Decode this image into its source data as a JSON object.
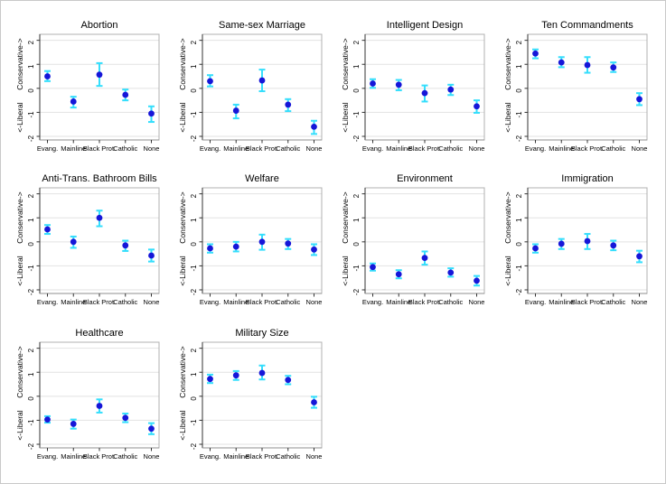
{
  "figure": {
    "description": "Grid of ten coefficient plots of policy attitudes by religious tradition",
    "x_categories": [
      "Evang.",
      "Mainline",
      "Black Prot.",
      "Catholic",
      "None"
    ],
    "y_ticks": [
      2,
      1,
      0,
      -1,
      -2
    ],
    "y_limits": [
      -2.15,
      2.25
    ],
    "y_axis_label_top": "Conservative->",
    "y_axis_label_bottom": "<-Liberal",
    "grid": true,
    "legend": "none",
    "colors": {
      "estimate_point": "#1616d8",
      "confidence_bar": "#35defc",
      "gridline": "#e2e2e2",
      "frame": "#b0b0b0",
      "axis_left": "#333333",
      "axis_bottom": "#8f8f8f",
      "tick": "#333333",
      "text": "#000000",
      "background": "#ffffff",
      "outer_border": "#c9c9c9"
    }
  },
  "chart_data": [
    {
      "type": "scatter",
      "title": "Abortion",
      "categories": [
        "Evang.",
        "Mainline",
        "Black Prot.",
        "Catholic",
        "None"
      ],
      "ylim": [
        -2.15,
        2.25
      ],
      "series": [
        {
          "name": "estimate",
          "values": [
            0.5,
            -0.55,
            0.57,
            -0.27,
            -1.05
          ]
        },
        {
          "name": "ci_lower",
          "values": [
            0.3,
            -0.8,
            0.1,
            -0.5,
            -1.4
          ]
        },
        {
          "name": "ci_upper",
          "values": [
            0.72,
            -0.35,
            1.05,
            -0.05,
            -0.75
          ]
        }
      ]
    },
    {
      "type": "scatter",
      "title": "Same-sex Marriage",
      "categories": [
        "Evang.",
        "Mainline",
        "Black Prot.",
        "Catholic",
        "None"
      ],
      "ylim": [
        -2.15,
        2.25
      ],
      "series": [
        {
          "name": "estimate",
          "values": [
            0.3,
            -0.93,
            0.33,
            -0.68,
            -1.6
          ]
        },
        {
          "name": "ci_lower",
          "values": [
            0.08,
            -1.25,
            -0.12,
            -0.95,
            -1.9
          ]
        },
        {
          "name": "ci_upper",
          "values": [
            0.55,
            -0.68,
            0.78,
            -0.45,
            -1.35
          ]
        }
      ]
    },
    {
      "type": "scatter",
      "title": "Intelligent Design",
      "categories": [
        "Evang.",
        "Mainline",
        "Black Prot.",
        "Catholic",
        "None"
      ],
      "ylim": [
        -2.15,
        2.25
      ],
      "series": [
        {
          "name": "estimate",
          "values": [
            0.2,
            0.15,
            -0.2,
            -0.05,
            -0.75
          ]
        },
        {
          "name": "ci_lower",
          "values": [
            0.02,
            -0.08,
            -0.55,
            -0.28,
            -1.02
          ]
        },
        {
          "name": "ci_upper",
          "values": [
            0.38,
            0.35,
            0.12,
            0.15,
            -0.5
          ]
        }
      ]
    },
    {
      "type": "scatter",
      "title": "Ten Commandments",
      "categories": [
        "Evang.",
        "Mainline",
        "Black Prot.",
        "Catholic",
        "None"
      ],
      "ylim": [
        -2.15,
        2.25
      ],
      "series": [
        {
          "name": "estimate",
          "values": [
            1.45,
            1.08,
            0.97,
            0.87,
            -0.45
          ]
        },
        {
          "name": "ci_lower",
          "values": [
            1.25,
            0.88,
            0.65,
            0.68,
            -0.7
          ]
        },
        {
          "name": "ci_upper",
          "values": [
            1.62,
            1.3,
            1.3,
            1.08,
            -0.2
          ]
        }
      ]
    },
    {
      "type": "scatter",
      "title": "Anti-Trans. Bathroom Bills",
      "categories": [
        "Evang.",
        "Mainline",
        "Black Prot.",
        "Catholic",
        "None"
      ],
      "ylim": [
        -2.15,
        2.25
      ],
      "series": [
        {
          "name": "estimate",
          "values": [
            0.52,
            0.0,
            1.0,
            -0.15,
            -0.57
          ]
        },
        {
          "name": "ci_lower",
          "values": [
            0.33,
            -0.25,
            0.65,
            -0.38,
            -0.82
          ]
        },
        {
          "name": "ci_upper",
          "values": [
            0.7,
            0.22,
            1.3,
            0.05,
            -0.32
          ]
        }
      ]
    },
    {
      "type": "scatter",
      "title": "Welfare",
      "categories": [
        "Evang.",
        "Mainline",
        "Black Prot.",
        "Catholic",
        "None"
      ],
      "ylim": [
        -2.15,
        2.25
      ],
      "series": [
        {
          "name": "estimate",
          "values": [
            -0.27,
            -0.2,
            0.0,
            -0.07,
            -0.32
          ]
        },
        {
          "name": "ci_lower",
          "values": [
            -0.45,
            -0.4,
            -0.33,
            -0.3,
            -0.55
          ]
        },
        {
          "name": "ci_upper",
          "values": [
            -0.1,
            0.0,
            0.3,
            0.12,
            -0.1
          ]
        }
      ]
    },
    {
      "type": "scatter",
      "title": "Environment",
      "categories": [
        "Evang.",
        "Mainline",
        "Black Prot.",
        "Catholic",
        "None"
      ],
      "ylim": [
        -2.15,
        2.25
      ],
      "series": [
        {
          "name": "estimate",
          "values": [
            -1.05,
            -1.35,
            -0.67,
            -1.28,
            -1.62
          ]
        },
        {
          "name": "ci_lower",
          "values": [
            -1.2,
            -1.52,
            -0.95,
            -1.45,
            -1.82
          ]
        },
        {
          "name": "ci_upper",
          "values": [
            -0.9,
            -1.18,
            -0.4,
            -1.1,
            -1.42
          ]
        }
      ]
    },
    {
      "type": "scatter",
      "title": "Immigration",
      "categories": [
        "Evang.",
        "Mainline",
        "Black Prot.",
        "Catholic",
        "None"
      ],
      "ylim": [
        -2.15,
        2.25
      ],
      "series": [
        {
          "name": "estimate",
          "values": [
            -0.27,
            -0.08,
            0.03,
            -0.15,
            -0.6
          ]
        },
        {
          "name": "ci_lower",
          "values": [
            -0.45,
            -0.3,
            -0.3,
            -0.35,
            -0.85
          ]
        },
        {
          "name": "ci_upper",
          "values": [
            -0.1,
            0.12,
            0.33,
            0.05,
            -0.37
          ]
        }
      ]
    },
    {
      "type": "scatter",
      "title": "Healthcare",
      "categories": [
        "Evang.",
        "Mainline",
        "Black Prot.",
        "Catholic",
        "None"
      ],
      "ylim": [
        -2.15,
        2.25
      ],
      "series": [
        {
          "name": "estimate",
          "values": [
            -0.97,
            -1.15,
            -0.4,
            -0.9,
            -1.35
          ]
        },
        {
          "name": "ci_lower",
          "values": [
            -1.1,
            -1.35,
            -0.68,
            -1.08,
            -1.58
          ]
        },
        {
          "name": "ci_upper",
          "values": [
            -0.83,
            -0.97,
            -0.13,
            -0.72,
            -1.12
          ]
        }
      ]
    },
    {
      "type": "scatter",
      "title": "Military Size",
      "categories": [
        "Evang.",
        "Mainline",
        "Black Prot.",
        "Catholic",
        "None"
      ],
      "ylim": [
        -2.15,
        2.25
      ],
      "series": [
        {
          "name": "estimate",
          "values": [
            0.72,
            0.87,
            0.97,
            0.68,
            -0.25
          ]
        },
        {
          "name": "ci_lower",
          "values": [
            0.55,
            0.68,
            0.7,
            0.5,
            -0.48
          ]
        },
        {
          "name": "ci_upper",
          "values": [
            0.9,
            1.05,
            1.28,
            0.85,
            -0.02
          ]
        }
      ]
    }
  ]
}
